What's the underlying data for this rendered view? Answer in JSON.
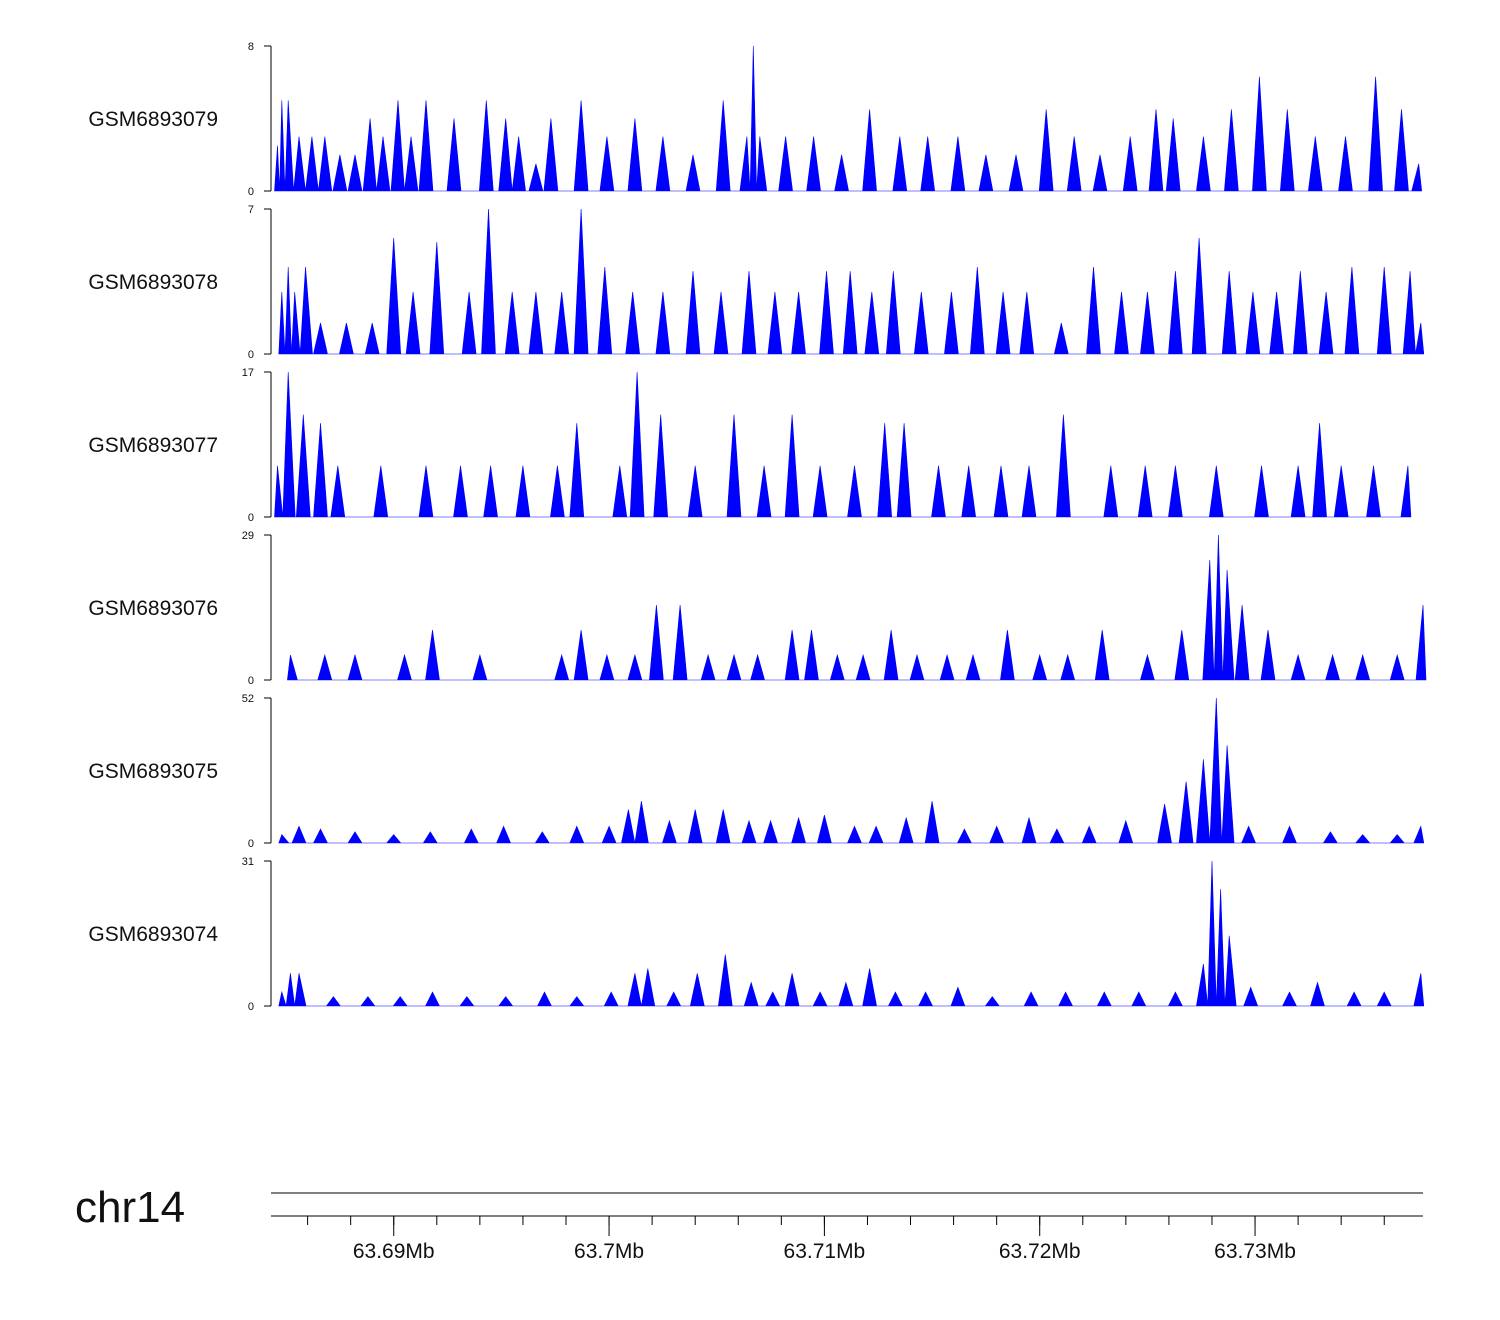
{
  "chart_data": {
    "type": "area",
    "fill_color": "#0000ff",
    "axis_color": "#000000",
    "chromosome": "chr14",
    "x_range_mb": [
      63.6843,
      63.7378
    ],
    "x_tick_labels": [
      "63.69Mb",
      "63.7Mb",
      "63.71Mb",
      "63.72Mb",
      "63.73Mb"
    ],
    "x_tick_values_mb": [
      63.69,
      63.7,
      63.71,
      63.72,
      63.73
    ],
    "tracks": [
      {
        "name": "GSM6893079",
        "ymin": 0,
        "ymax": 8,
        "ymin_label": "0",
        "ymax_label": "8",
        "peaks": [
          [
            63.6846,
            2.5
          ],
          [
            63.6848,
            5
          ],
          [
            63.6851,
            5
          ],
          [
            63.6856,
            3
          ],
          [
            63.6862,
            3
          ],
          [
            63.6868,
            3
          ],
          [
            63.6875,
            2
          ],
          [
            63.6882,
            2
          ],
          [
            63.6889,
            4
          ],
          [
            63.6895,
            3
          ],
          [
            63.6902,
            5
          ],
          [
            63.6908,
            3
          ],
          [
            63.6915,
            5
          ],
          [
            63.6928,
            4
          ],
          [
            63.6943,
            5
          ],
          [
            63.6952,
            4
          ],
          [
            63.6958,
            3
          ],
          [
            63.6966,
            1.5
          ],
          [
            63.6973,
            4
          ],
          [
            63.6987,
            5
          ],
          [
            63.6999,
            3
          ],
          [
            63.7012,
            4
          ],
          [
            63.7025,
            3
          ],
          [
            63.7039,
            2
          ],
          [
            63.7053,
            5
          ],
          [
            63.7064,
            3
          ],
          [
            63.7067,
            8
          ],
          [
            63.707,
            3
          ],
          [
            63.7082,
            3
          ],
          [
            63.7095,
            3
          ],
          [
            63.7108,
            2
          ],
          [
            63.7121,
            4.5
          ],
          [
            63.7135,
            3
          ],
          [
            63.7148,
            3
          ],
          [
            63.7162,
            3
          ],
          [
            63.7175,
            2
          ],
          [
            63.7189,
            2
          ],
          [
            63.7203,
            4.5
          ],
          [
            63.7216,
            3
          ],
          [
            63.7228,
            2
          ],
          [
            63.7242,
            3
          ],
          [
            63.7254,
            4.5
          ],
          [
            63.7262,
            4
          ],
          [
            63.7276,
            3
          ],
          [
            63.7289,
            4.5
          ],
          [
            63.7302,
            6.3
          ],
          [
            63.7315,
            4.5
          ],
          [
            63.7328,
            3
          ],
          [
            63.7342,
            3
          ],
          [
            63.7356,
            6.3
          ],
          [
            63.7368,
            4.5
          ],
          [
            63.7376,
            1.5
          ]
        ]
      },
      {
        "name": "GSM6893078",
        "ymin": 0,
        "ymax": 7,
        "ymin_label": "0",
        "ymax_label": "7",
        "peaks": [
          [
            63.6848,
            3
          ],
          [
            63.6851,
            4.2
          ],
          [
            63.6854,
            3
          ],
          [
            63.6859,
            4.2
          ],
          [
            63.6866,
            1.5
          ],
          [
            63.6878,
            1.5
          ],
          [
            63.689,
            1.5
          ],
          [
            63.69,
            5.6
          ],
          [
            63.6909,
            3
          ],
          [
            63.692,
            5.4
          ],
          [
            63.6935,
            3
          ],
          [
            63.6944,
            7
          ],
          [
            63.6955,
            3
          ],
          [
            63.6966,
            3
          ],
          [
            63.6978,
            3
          ],
          [
            63.6987,
            7
          ],
          [
            63.6998,
            4.2
          ],
          [
            63.7011,
            3
          ],
          [
            63.7025,
            3
          ],
          [
            63.7039,
            4
          ],
          [
            63.7052,
            3
          ],
          [
            63.7065,
            4
          ],
          [
            63.7077,
            3
          ],
          [
            63.7088,
            3
          ],
          [
            63.7101,
            4
          ],
          [
            63.7112,
            4
          ],
          [
            63.7122,
            3
          ],
          [
            63.7132,
            4
          ],
          [
            63.7145,
            3
          ],
          [
            63.7159,
            3
          ],
          [
            63.7171,
            4.2
          ],
          [
            63.7183,
            3
          ],
          [
            63.7194,
            3
          ],
          [
            63.721,
            1.5
          ],
          [
            63.7225,
            4.2
          ],
          [
            63.7238,
            3
          ],
          [
            63.725,
            3
          ],
          [
            63.7263,
            4
          ],
          [
            63.7274,
            5.6
          ],
          [
            63.7288,
            4
          ],
          [
            63.7299,
            3
          ],
          [
            63.731,
            3
          ],
          [
            63.7321,
            4
          ],
          [
            63.7333,
            3
          ],
          [
            63.7345,
            4.2
          ],
          [
            63.736,
            4.2
          ],
          [
            63.7372,
            4
          ],
          [
            63.7377,
            1.5
          ]
        ]
      },
      {
        "name": "GSM6893077",
        "ymin": 0,
        "ymax": 17,
        "ymin_label": "0",
        "ymax_label": "17",
        "peaks": [
          [
            63.6846,
            6
          ],
          [
            63.6851,
            17
          ],
          [
            63.6858,
            12
          ],
          [
            63.6866,
            11
          ],
          [
            63.6874,
            6
          ],
          [
            63.6894,
            6
          ],
          [
            63.6915,
            6
          ],
          [
            63.6931,
            6
          ],
          [
            63.6945,
            6
          ],
          [
            63.696,
            6
          ],
          [
            63.6976,
            6
          ],
          [
            63.6985,
            11
          ],
          [
            63.7005,
            6
          ],
          [
            63.7013,
            17
          ],
          [
            63.7024,
            12
          ],
          [
            63.704,
            6
          ],
          [
            63.7058,
            12
          ],
          [
            63.7072,
            6
          ],
          [
            63.7085,
            12
          ],
          [
            63.7098,
            6
          ],
          [
            63.7114,
            6
          ],
          [
            63.7128,
            11
          ],
          [
            63.7137,
            11
          ],
          [
            63.7153,
            6
          ],
          [
            63.7167,
            6
          ],
          [
            63.7182,
            6
          ],
          [
            63.7195,
            6
          ],
          [
            63.7211,
            12
          ],
          [
            63.7233,
            6
          ],
          [
            63.7249,
            6
          ],
          [
            63.7263,
            6
          ],
          [
            63.7282,
            6
          ],
          [
            63.7303,
            6
          ],
          [
            63.732,
            6
          ],
          [
            63.733,
            11
          ],
          [
            63.734,
            6
          ],
          [
            63.7355,
            6
          ],
          [
            63.7371,
            6
          ]
        ]
      },
      {
        "name": "GSM6893076",
        "ymin": 0,
        "ymax": 29,
        "ymin_label": "0",
        "ymax_label": "29",
        "peaks": [
          [
            63.6852,
            5
          ],
          [
            63.6868,
            5
          ],
          [
            63.6882,
            5
          ],
          [
            63.6905,
            5
          ],
          [
            63.6918,
            10
          ],
          [
            63.694,
            5
          ],
          [
            63.6978,
            5
          ],
          [
            63.6987,
            10
          ],
          [
            63.6999,
            5
          ],
          [
            63.7012,
            5
          ],
          [
            63.7022,
            15
          ],
          [
            63.7033,
            15
          ],
          [
            63.7046,
            5
          ],
          [
            63.7058,
            5
          ],
          [
            63.7069,
            5
          ],
          [
            63.7085,
            10
          ],
          [
            63.7094,
            10
          ],
          [
            63.7106,
            5
          ],
          [
            63.7118,
            5
          ],
          [
            63.7131,
            10
          ],
          [
            63.7143,
            5
          ],
          [
            63.7157,
            5
          ],
          [
            63.7169,
            5
          ],
          [
            63.7185,
            10
          ],
          [
            63.72,
            5
          ],
          [
            63.7213,
            5
          ],
          [
            63.7229,
            10
          ],
          [
            63.725,
            5
          ],
          [
            63.7266,
            10
          ],
          [
            63.7279,
            24
          ],
          [
            63.7283,
            29
          ],
          [
            63.7287,
            22
          ],
          [
            63.7294,
            15
          ],
          [
            63.7306,
            10
          ],
          [
            63.732,
            5
          ],
          [
            63.7336,
            5
          ],
          [
            63.735,
            5
          ],
          [
            63.7366,
            5
          ],
          [
            63.7378,
            15
          ]
        ]
      },
      {
        "name": "GSM6893075",
        "ymin": 0,
        "ymax": 52,
        "ymin_label": "0",
        "ymax_label": "52",
        "peaks": [
          [
            63.6848,
            3
          ],
          [
            63.6856,
            6
          ],
          [
            63.6866,
            5
          ],
          [
            63.6882,
            4
          ],
          [
            63.69,
            3
          ],
          [
            63.6917,
            4
          ],
          [
            63.6936,
            5
          ],
          [
            63.6951,
            6
          ],
          [
            63.6969,
            4
          ],
          [
            63.6985,
            6
          ],
          [
            63.7,
            6
          ],
          [
            63.7009,
            12
          ],
          [
            63.7015,
            15
          ],
          [
            63.7028,
            8
          ],
          [
            63.704,
            12
          ],
          [
            63.7053,
            12
          ],
          [
            63.7065,
            8
          ],
          [
            63.7075,
            8
          ],
          [
            63.7088,
            9
          ],
          [
            63.71,
            10
          ],
          [
            63.7114,
            6
          ],
          [
            63.7124,
            6
          ],
          [
            63.7138,
            9
          ],
          [
            63.715,
            15
          ],
          [
            63.7165,
            5
          ],
          [
            63.718,
            6
          ],
          [
            63.7195,
            9
          ],
          [
            63.7208,
            5
          ],
          [
            63.7223,
            6
          ],
          [
            63.724,
            8
          ],
          [
            63.7258,
            14
          ],
          [
            63.7268,
            22
          ],
          [
            63.7276,
            30
          ],
          [
            63.7282,
            52
          ],
          [
            63.7287,
            35
          ],
          [
            63.7297,
            6
          ],
          [
            63.7316,
            6
          ],
          [
            63.7335,
            4
          ],
          [
            63.735,
            3
          ],
          [
            63.7366,
            3
          ],
          [
            63.7377,
            6
          ]
        ]
      },
      {
        "name": "GSM6893074",
        "ymin": 0,
        "ymax": 31,
        "ymin_label": "0",
        "ymax_label": "31",
        "peaks": [
          [
            63.6848,
            3
          ],
          [
            63.6852,
            7
          ],
          [
            63.6856,
            7
          ],
          [
            63.6872,
            2
          ],
          [
            63.6888,
            2
          ],
          [
            63.6903,
            2
          ],
          [
            63.6918,
            3
          ],
          [
            63.6934,
            2
          ],
          [
            63.6952,
            2
          ],
          [
            63.697,
            3
          ],
          [
            63.6985,
            2
          ],
          [
            63.7001,
            3
          ],
          [
            63.7012,
            7
          ],
          [
            63.7018,
            8
          ],
          [
            63.703,
            3
          ],
          [
            63.7041,
            7
          ],
          [
            63.7054,
            11
          ],
          [
            63.7066,
            5
          ],
          [
            63.7076,
            3
          ],
          [
            63.7085,
            7
          ],
          [
            63.7098,
            3
          ],
          [
            63.711,
            5
          ],
          [
            63.7121,
            8
          ],
          [
            63.7133,
            3
          ],
          [
            63.7147,
            3
          ],
          [
            63.7162,
            4
          ],
          [
            63.7178,
            2
          ],
          [
            63.7196,
            3
          ],
          [
            63.7212,
            3
          ],
          [
            63.723,
            3
          ],
          [
            63.7246,
            3
          ],
          [
            63.7263,
            3
          ],
          [
            63.7276,
            9
          ],
          [
            63.728,
            31
          ],
          [
            63.7284,
            25
          ],
          [
            63.7288,
            15
          ],
          [
            63.7298,
            4
          ],
          [
            63.7316,
            3
          ],
          [
            63.7329,
            5
          ],
          [
            63.7346,
            3
          ],
          [
            63.736,
            3
          ],
          [
            63.7377,
            7
          ]
        ]
      }
    ]
  }
}
